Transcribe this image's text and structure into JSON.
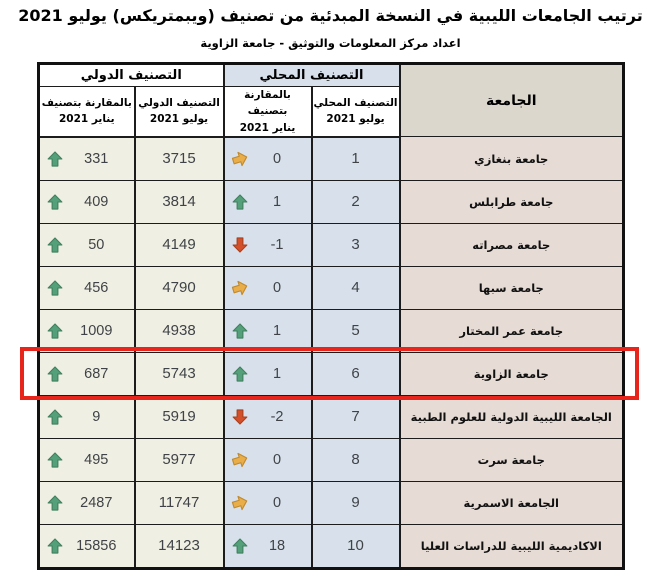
{
  "page": {
    "title": "ترتيب الجامعات الليبية في النسخة المبدئية من تصنيف (ويبمتريكس) يوليو 2021",
    "subtitle": "اعداد مركز المعلومات والتوثيق - جامعة الزاوية"
  },
  "table": {
    "headers": {
      "university": "الجامعة",
      "local_group": "التصنيف المحلي",
      "intl_group": "التصنيف الدولي",
      "local_rank_line1": "التصنيف المحلي",
      "local_rank_line2": "يوليو 2021",
      "local_cmp_line1": "بالمقارنة بتصنيف",
      "local_cmp_line2": "يناير 2021",
      "intl_rank_line1": "التصنيف الدولي",
      "intl_rank_line2": "يوليو 2021",
      "intl_cmp_line1": "بالمقارنة بتصنيف",
      "intl_cmp_line2": "يناير 2021"
    },
    "rows": [
      {
        "university": "جامعة بنغازي",
        "local_rank": "1",
        "local_change": "0",
        "local_trend": "same",
        "intl_rank": "3715",
        "intl_change": "331",
        "intl_trend": "up",
        "highlighted": false
      },
      {
        "university": "جامعة طرابلس",
        "local_rank": "2",
        "local_change": "1",
        "local_trend": "up",
        "intl_rank": "3814",
        "intl_change": "409",
        "intl_trend": "up",
        "highlighted": false
      },
      {
        "university": "جامعة مصراته",
        "local_rank": "3",
        "local_change": "-1",
        "local_trend": "down",
        "intl_rank": "4149",
        "intl_change": "50",
        "intl_trend": "up",
        "highlighted": false
      },
      {
        "university": "جامعة سبها",
        "local_rank": "4",
        "local_change": "0",
        "local_trend": "same",
        "intl_rank": "4790",
        "intl_change": "456",
        "intl_trend": "up",
        "highlighted": false
      },
      {
        "university": "جامعة عمر المختار",
        "local_rank": "5",
        "local_change": "1",
        "local_trend": "up",
        "intl_rank": "4938",
        "intl_change": "1009",
        "intl_trend": "up",
        "highlighted": false
      },
      {
        "university": "جامعة الزاوية",
        "local_rank": "6",
        "local_change": "1",
        "local_trend": "up",
        "intl_rank": "5743",
        "intl_change": "687",
        "intl_trend": "up",
        "highlighted": true
      },
      {
        "university": "الجامعة الليبية الدولية للعلوم الطبية",
        "local_rank": "7",
        "local_change": "-2",
        "local_trend": "down",
        "intl_rank": "5919",
        "intl_change": "9",
        "intl_trend": "up",
        "highlighted": false
      },
      {
        "university": "جامعة سرت",
        "local_rank": "8",
        "local_change": "0",
        "local_trend": "same",
        "intl_rank": "5977",
        "intl_change": "495",
        "intl_trend": "up",
        "highlighted": false
      },
      {
        "university": "الجامعة الاسمرية",
        "local_rank": "9",
        "local_change": "0",
        "local_trend": "same",
        "intl_rank": "11747",
        "intl_change": "2487",
        "intl_trend": "up",
        "highlighted": false
      },
      {
        "university": "الاكاديمية الليبية للدراسات العليا",
        "local_rank": "10",
        "local_change": "18",
        "local_trend": "up",
        "intl_rank": "14123",
        "intl_change": "15856",
        "intl_trend": "up",
        "highlighted": false
      }
    ]
  },
  "icons": {
    "up": "up-arrow-icon",
    "down": "down-arrow-icon",
    "same": "steady-arrow-icon"
  },
  "colors": {
    "local_cell_bg": "#d8e1eb",
    "intl_cell_bg": "#f0efe3",
    "university_cell_bg": "#e6dbd5",
    "university_header_bg": "#dcd7cd",
    "local_header_bg": "#d8e1eb",
    "border": "#1c1c1c",
    "highlight_border": "#e8251d",
    "arrow_up": "#54a07b",
    "arrow_down": "#d4502b",
    "arrow_steady": "#e9ad49",
    "number_text": "#3f4347"
  }
}
